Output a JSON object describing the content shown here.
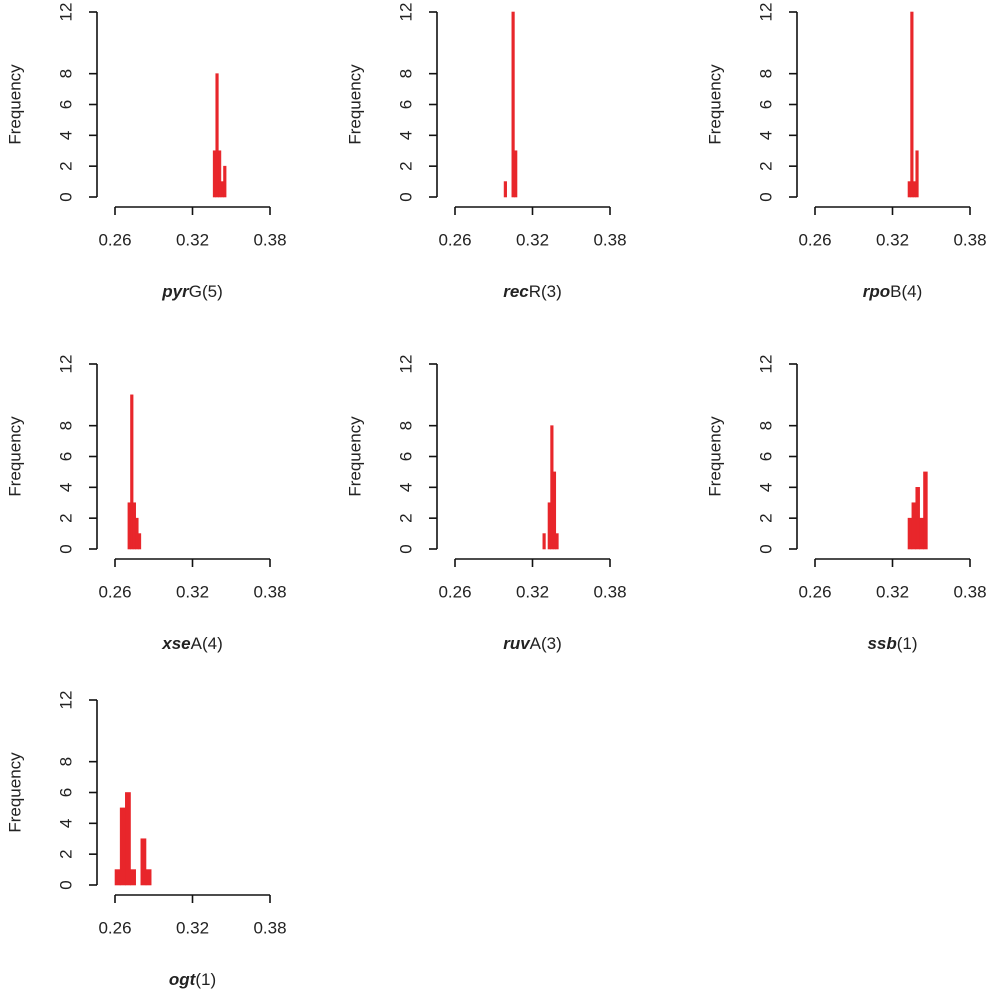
{
  "chart_data": [
    {
      "type": "histogram",
      "ylabel": "Frequency",
      "xlabel": [
        {
          "text": "pyr",
          "italic": true
        },
        {
          "text": "G(5)",
          "italic": false
        }
      ],
      "bins": [
        0.336,
        0.338,
        0.34,
        0.342,
        0.344,
        0.346
      ],
      "values": [
        3,
        8,
        3,
        1,
        2
      ],
      "color": "#e8262b",
      "xlim": [
        0.26,
        0.38
      ],
      "xticks": [
        0.26,
        0.32,
        0.38
      ],
      "ylim": [
        0,
        12
      ],
      "yticks": [
        0,
        2,
        4,
        6,
        8,
        12
      ]
    },
    {
      "type": "histogram",
      "ylabel": "Frequency",
      "xlabel": [
        {
          "text": "rec",
          "italic": true
        },
        {
          "text": "R(3)",
          "italic": false
        }
      ],
      "bins": [
        0.298,
        0.3,
        0.302,
        0.304,
        0.306,
        0.308
      ],
      "values": [
        1,
        0,
        0,
        12,
        3
      ],
      "color": "#e8262b",
      "xlim": [
        0.26,
        0.38
      ],
      "xticks": [
        0.26,
        0.32,
        0.38
      ],
      "ylim": [
        0,
        12
      ],
      "yticks": [
        0,
        2,
        4,
        6,
        8,
        12
      ]
    },
    {
      "type": "histogram",
      "ylabel": "Frequency",
      "xlabel": [
        {
          "text": "rpo",
          "italic": true
        },
        {
          "text": "B(4)",
          "italic": false
        }
      ],
      "bins": [
        0.332,
        0.334,
        0.336,
        0.338,
        0.34
      ],
      "values": [
        1,
        12,
        1,
        3
      ],
      "color": "#e8262b",
      "xlim": [
        0.26,
        0.38
      ],
      "xticks": [
        0.26,
        0.32,
        0.38
      ],
      "ylim": [
        0,
        12
      ],
      "yticks": [
        0,
        2,
        4,
        6,
        8,
        12
      ]
    },
    {
      "type": "histogram",
      "ylabel": "Frequency",
      "xlabel": [
        {
          "text": "xse",
          "italic": true
        },
        {
          "text": "A(4)",
          "italic": false
        }
      ],
      "bins": [
        0.27,
        0.272,
        0.274,
        0.276,
        0.278,
        0.28
      ],
      "values": [
        3,
        10,
        3,
        2,
        1
      ],
      "color": "#e8262b",
      "xlim": [
        0.26,
        0.38
      ],
      "xticks": [
        0.26,
        0.32,
        0.38
      ],
      "ylim": [
        0,
        12
      ],
      "yticks": [
        0,
        2,
        4,
        6,
        8,
        12
      ]
    },
    {
      "type": "histogram",
      "ylabel": "Frequency",
      "xlabel": [
        {
          "text": "ruv",
          "italic": true
        },
        {
          "text": "A(3)",
          "italic": false
        }
      ],
      "bins": [
        0.328,
        0.33,
        0.332,
        0.334,
        0.336,
        0.338,
        0.34
      ],
      "values": [
        1,
        0,
        3,
        8,
        5,
        1
      ],
      "color": "#e8262b",
      "xlim": [
        0.26,
        0.38
      ],
      "xticks": [
        0.26,
        0.32,
        0.38
      ],
      "ylim": [
        0,
        12
      ],
      "yticks": [
        0,
        2,
        4,
        6,
        8,
        12
      ]
    },
    {
      "type": "histogram",
      "ylabel": "Frequency",
      "xlabel": [
        {
          "text": "ssb",
          "italic": true
        },
        {
          "text": "(1)",
          "italic": false
        }
      ],
      "bins": [
        0.332,
        0.335,
        0.338,
        0.341,
        0.344,
        0.347
      ],
      "values": [
        2,
        3,
        4,
        2,
        5
      ],
      "color": "#e8262b",
      "xlim": [
        0.26,
        0.38
      ],
      "xticks": [
        0.26,
        0.32,
        0.38
      ],
      "ylim": [
        0,
        12
      ],
      "yticks": [
        0,
        2,
        4,
        6,
        8,
        12
      ]
    },
    {
      "type": "histogram",
      "ylabel": "Frequency",
      "xlabel": [
        {
          "text": "ogt",
          "italic": true
        },
        {
          "text": "(1)",
          "italic": false
        }
      ],
      "bins": [
        0.26,
        0.264,
        0.268,
        0.272,
        0.276,
        0.28,
        0.284,
        0.288
      ],
      "values": [
        1,
        5,
        6,
        1,
        0,
        3,
        1
      ],
      "color": "#e8262b",
      "xlim": [
        0.26,
        0.38
      ],
      "xticks": [
        0.26,
        0.32,
        0.38
      ],
      "ylim": [
        0,
        12
      ],
      "yticks": [
        0,
        2,
        4,
        6,
        8,
        12
      ]
    }
  ]
}
